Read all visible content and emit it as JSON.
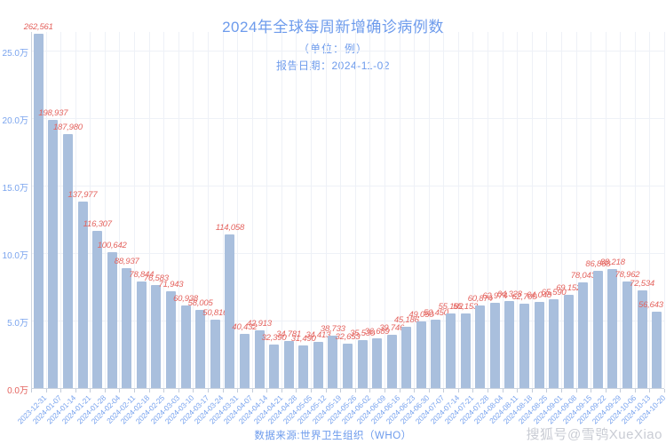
{
  "header": {
    "title": "2024年全球每周新增确诊病例数",
    "subtitle": "（单位：例）",
    "report_date": "报告日期：2024-11-02"
  },
  "footer": {
    "source": "数据来源:世界卫生组织（WHO）",
    "watermark": "搜狐号@雪鸮XueXiao"
  },
  "colors": {
    "title_blue": "#6d9bec",
    "axis_blue": "#7aa4ee",
    "label_red": "#e4635e",
    "bar_fill": "#a9bfdd",
    "grid": "#eef1f7",
    "watermark_gray": "#c9ccd4"
  },
  "chart_data": {
    "type": "bar",
    "title": "2024年全球每周新增确诊病例数",
    "unit": "例",
    "categories": [
      "2023-12-31",
      "2024-01-07",
      "2024-01-14",
      "2024-01-21",
      "2024-01-28",
      "2024-02-04",
      "2024-02-11",
      "2024-02-18",
      "2024-02-25",
      "2024-03-03",
      "2024-03-10",
      "2024-03-17",
      "2024-03-24",
      "2024-03-31",
      "2024-04-07",
      "2024-04-14",
      "2024-04-21",
      "2024-04-28",
      "2024-05-05",
      "2024-05-12",
      "2024-05-19",
      "2024-05-26",
      "2024-06-02",
      "2024-06-09",
      "2024-06-16",
      "2024-06-23",
      "2024-06-30",
      "2024-07-07",
      "2024-07-14",
      "2024-07-21",
      "2024-07-28",
      "2024-08-04",
      "2024-08-11",
      "2024-08-18",
      "2024-08-25",
      "2024-09-01",
      "2024-09-08",
      "2024-09-15",
      "2024-09-22",
      "2024-09-29",
      "2024-10-06",
      "2024-10-13",
      "2024-10-20"
    ],
    "values": [
      262561,
      198937,
      187980,
      137977,
      116307,
      100642,
      88937,
      78844,
      76583,
      71943,
      60938,
      58005,
      50816,
      114058,
      40432,
      42913,
      32390,
      34781,
      31490,
      34413,
      38733,
      32653,
      35530,
      36689,
      39746,
      45186,
      49050,
      50450,
      55182,
      55153,
      60874,
      62974,
      64328,
      62700,
      64048,
      65590,
      69152,
      78043,
      86868,
      88218,
      78962,
      72534,
      56643
    ],
    "y_ticks": [
      {
        "label": "0.0万",
        "value": 0,
        "color": "#e4635e"
      },
      {
        "label": "5.0万",
        "value": 50000,
        "color": "#7aa4ee"
      },
      {
        "label": "10.0万",
        "value": 100000,
        "color": "#7aa4ee"
      },
      {
        "label": "15.0万",
        "value": 150000,
        "color": "#7aa4ee"
      },
      {
        "label": "20.0万",
        "value": 200000,
        "color": "#7aa4ee"
      },
      {
        "label": "25.0万",
        "value": 250000,
        "color": "#7aa4ee"
      }
    ],
    "ylim": [
      0,
      275000
    ],
    "grid": true,
    "legend": false,
    "value_labels": true,
    "x_label_rotation": -45
  }
}
